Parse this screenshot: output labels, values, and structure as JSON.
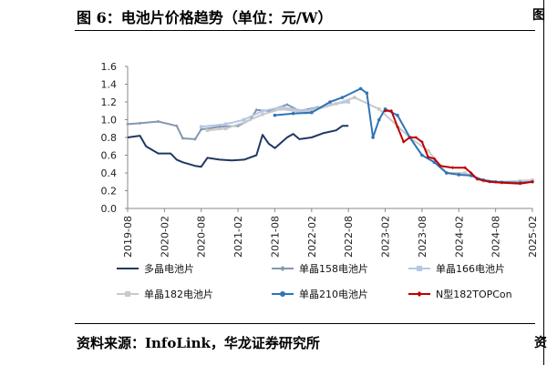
{
  "header": {
    "title": "图 6：电池片价格趋势（单位：元/W）"
  },
  "footer": {
    "source": "资料来源：InfoLink，华龙证券研究所"
  },
  "fragments": {
    "top_right": "图",
    "bottom_right": "资"
  },
  "chart_data": {
    "type": "line",
    "title": "",
    "xlabel": "",
    "ylabel": "",
    "ylim": [
      0,
      1.6
    ],
    "yticks": [
      "0.0",
      "0.2",
      "0.4",
      "0.6",
      "0.8",
      "1.0",
      "1.2",
      "1.4",
      "1.6"
    ],
    "xticks": [
      "2019-08",
      "2020-02",
      "2020-08",
      "2021-02",
      "2021-08",
      "2022-02",
      "2022-08",
      "2023-02",
      "2023-08",
      "2024-02",
      "2024-08",
      "2025-02"
    ],
    "grid": false,
    "legend_position": "bottom",
    "series": [
      {
        "name": "多晶电池片",
        "color": "#1f3864",
        "marker": "none",
        "points": [
          [
            "2019-08",
            0.8
          ],
          [
            "2019-10",
            0.82
          ],
          [
            "2019-11",
            0.7
          ],
          [
            "2020-01",
            0.62
          ],
          [
            "2020-03",
            0.62
          ],
          [
            "2020-04",
            0.55
          ],
          [
            "2020-05",
            0.52
          ],
          [
            "2020-07",
            0.48
          ],
          [
            "2020-08",
            0.47
          ],
          [
            "2020-09",
            0.57
          ],
          [
            "2020-11",
            0.55
          ],
          [
            "2021-01",
            0.54
          ],
          [
            "2021-03",
            0.55
          ],
          [
            "2021-05",
            0.6
          ],
          [
            "2021-06",
            0.83
          ],
          [
            "2021-07",
            0.73
          ],
          [
            "2021-08",
            0.68
          ],
          [
            "2021-10",
            0.8
          ],
          [
            "2021-11",
            0.84
          ],
          [
            "2021-12",
            0.78
          ],
          [
            "2022-02",
            0.8
          ],
          [
            "2022-04",
            0.85
          ],
          [
            "2022-06",
            0.88
          ],
          [
            "2022-07",
            0.93
          ],
          [
            "2022-08",
            0.93
          ]
        ]
      },
      {
        "name": "单晶158电池片",
        "color": "#8497b0",
        "marker": "diamond",
        "points": [
          [
            "2019-08",
            0.95
          ],
          [
            "2019-10",
            0.96
          ],
          [
            "2020-01",
            0.98
          ],
          [
            "2020-04",
            0.93
          ],
          [
            "2020-05",
            0.79
          ],
          [
            "2020-07",
            0.78
          ],
          [
            "2020-08",
            0.89
          ],
          [
            "2020-11",
            0.92
          ],
          [
            "2021-02",
            0.93
          ],
          [
            "2021-04",
            1.0
          ],
          [
            "2021-05",
            1.11
          ],
          [
            "2021-07",
            1.1
          ],
          [
            "2021-10",
            1.17
          ],
          [
            "2021-12",
            1.1
          ],
          [
            "2022-03",
            1.14
          ]
        ]
      },
      {
        "name": "单晶166电池片",
        "color": "#b4c7e7",
        "marker": "square",
        "points": [
          [
            "2020-08",
            0.92
          ],
          [
            "2020-12",
            0.95
          ],
          [
            "2021-03",
            1.0
          ],
          [
            "2021-06",
            1.1
          ],
          [
            "2021-09",
            1.14
          ],
          [
            "2022-01",
            1.1
          ],
          [
            "2022-05",
            1.17
          ],
          [
            "2022-08",
            1.2
          ]
        ]
      },
      {
        "name": "单晶182电池片",
        "color": "#c9c9c9",
        "marker": "square",
        "points": [
          [
            "2020-09",
            0.88
          ],
          [
            "2020-12",
            0.9
          ],
          [
            "2021-03",
            0.97
          ],
          [
            "2021-06",
            1.06
          ],
          [
            "2021-09",
            1.12
          ],
          [
            "2022-01",
            1.08
          ],
          [
            "2022-06",
            1.18
          ],
          [
            "2022-09",
            1.25
          ],
          [
            "2023-01",
            1.12
          ],
          [
            "2023-06",
            0.8
          ],
          [
            "2023-09",
            0.65
          ],
          [
            "2023-12",
            0.4
          ],
          [
            "2024-03",
            0.4
          ],
          [
            "2024-06",
            0.31
          ],
          [
            "2024-09",
            0.3
          ],
          [
            "2024-12",
            0.31
          ],
          [
            "2025-02",
            0.32
          ]
        ]
      },
      {
        "name": "单晶210电池片",
        "color": "#2e75b6",
        "marker": "circle",
        "points": [
          [
            "2021-08",
            1.05
          ],
          [
            "2021-11",
            1.07
          ],
          [
            "2022-02",
            1.08
          ],
          [
            "2022-05",
            1.2
          ],
          [
            "2022-07",
            1.25
          ],
          [
            "2022-10",
            1.35
          ],
          [
            "2022-11",
            1.3
          ],
          [
            "2022-12",
            0.8
          ],
          [
            "2023-01",
            1.0
          ],
          [
            "2023-02",
            1.12
          ],
          [
            "2023-04",
            1.05
          ],
          [
            "2023-06",
            0.8
          ],
          [
            "2023-08",
            0.6
          ],
          [
            "2023-10",
            0.52
          ],
          [
            "2023-12",
            0.4
          ],
          [
            "2024-02",
            0.38
          ],
          [
            "2024-04",
            0.37
          ],
          [
            "2024-06",
            0.32
          ],
          [
            "2024-08",
            0.3
          ],
          [
            "2024-12",
            0.29
          ],
          [
            "2025-02",
            0.3
          ]
        ]
      },
      {
        "name": "N型182TOPCon",
        "color": "#c00000",
        "marker": "diamond",
        "points": [
          [
            "2023-02",
            1.1
          ],
          [
            "2023-03",
            1.1
          ],
          [
            "2023-04",
            0.92
          ],
          [
            "2023-05",
            0.75
          ],
          [
            "2023-06",
            0.8
          ],
          [
            "2023-07",
            0.8
          ],
          [
            "2023-08",
            0.75
          ],
          [
            "2023-09",
            0.58
          ],
          [
            "2023-10",
            0.56
          ],
          [
            "2023-11",
            0.48
          ],
          [
            "2024-01",
            0.46
          ],
          [
            "2024-03",
            0.46
          ],
          [
            "2024-04",
            0.4
          ],
          [
            "2024-05",
            0.33
          ],
          [
            "2024-07",
            0.3
          ],
          [
            "2024-09",
            0.29
          ],
          [
            "2024-12",
            0.28
          ],
          [
            "2025-02",
            0.3
          ]
        ]
      }
    ]
  }
}
